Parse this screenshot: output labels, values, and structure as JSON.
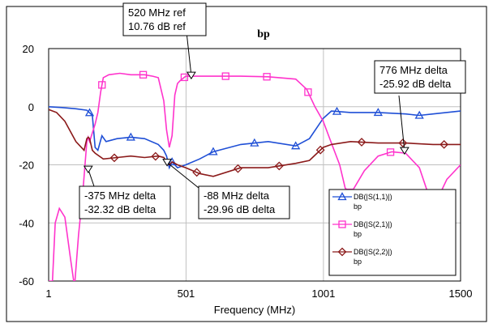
{
  "chart_data": {
    "type": "line",
    "title": "bp",
    "xlabel": "Frequency (MHz)",
    "ylabel": "",
    "xlim": [
      1,
      1500
    ],
    "ylim": [
      -60,
      20
    ],
    "x_ticks": [
      1,
      501,
      1001,
      1500
    ],
    "y_ticks": [
      20,
      0,
      -20,
      -40,
      -60
    ],
    "grid": true,
    "legend_position": "bottom-right",
    "series": [
      {
        "name": "DB(|S(1,1)|)",
        "sub": "bp",
        "color": "#1f4fd6",
        "marker": "triangle",
        "x": [
          1,
          50,
          100,
          140,
          160,
          170,
          180,
          195,
          210,
          250,
          300,
          350,
          400,
          420,
          430,
          440,
          450,
          470,
          500,
          550,
          600,
          700,
          800,
          900,
          950,
          1000,
          1030,
          1100,
          1200,
          1300,
          1350,
          1400,
          1500
        ],
        "y": [
          0,
          -0.3,
          -0.7,
          -1.2,
          -3,
          -14,
          -15,
          -10,
          -12,
          -11,
          -10.5,
          -11,
          -13,
          -15,
          -17,
          -21,
          -19,
          -21,
          -20,
          -18,
          -15.5,
          -13,
          -12,
          -13.5,
          -11,
          -4,
          -1.5,
          -2,
          -2,
          -2.5,
          -3,
          -2.5,
          -1.5
        ]
      },
      {
        "name": "DB(|S(2,1)|)",
        "sub": "bp",
        "color": "#ff33cc",
        "marker": "square",
        "x": [
          1,
          15,
          25,
          40,
          60,
          80,
          95,
          110,
          125,
          135,
          140,
          145,
          150,
          160,
          170,
          180,
          190,
          200,
          220,
          260,
          300,
          350,
          380,
          400,
          410,
          420,
          430,
          440,
          450,
          460,
          470,
          480,
          500,
          600,
          700,
          800,
          900,
          940,
          970,
          1000,
          1020,
          1040,
          1060,
          1080,
          1100,
          1150,
          1200,
          1250,
          1300,
          1350,
          1400,
          1450,
          1500
        ],
        "y": [
          -60,
          -60,
          -40,
          -35,
          -38,
          -52,
          -62,
          -44,
          -30,
          -18,
          -12,
          -10.5,
          -12,
          -9,
          -6,
          -2,
          5,
          10,
          11,
          11.5,
          11,
          11,
          10.5,
          10,
          6,
          2,
          -8,
          -14,
          -10,
          4,
          8,
          9,
          10.5,
          10.5,
          10.5,
          10.3,
          9.5,
          6,
          0,
          -5,
          -10,
          -15,
          -20,
          -28,
          -30,
          -22,
          -17,
          -15.5,
          -16,
          -21,
          -35,
          -25,
          -20
        ]
      },
      {
        "name": "DB(|S(2,2)|)",
        "sub": "bp",
        "color": "#8b1a1a",
        "marker": "diamond",
        "x": [
          1,
          30,
          60,
          100,
          130,
          140,
          145,
          150,
          160,
          170,
          200,
          250,
          300,
          350,
          400,
          420,
          430,
          440,
          450,
          470,
          500,
          550,
          600,
          700,
          800,
          900,
          950,
          1000,
          1030,
          1100,
          1200,
          1300,
          1400,
          1500
        ],
        "y": [
          -1,
          -2,
          -5,
          -12,
          -15,
          -11,
          -10.5,
          -11,
          -15,
          -16,
          -18,
          -17.5,
          -17,
          -17.5,
          -17,
          -17.5,
          -19,
          -20,
          -19,
          -20,
          -21,
          -23,
          -24,
          -21,
          -21,
          -19.5,
          -18.5,
          -14,
          -13,
          -12,
          -12.5,
          -12.5,
          -13,
          -13
        ]
      }
    ],
    "annotations": [
      {
        "lines": [
          "520 MHz ref",
          "10.76 dB ref"
        ],
        "x": 520,
        "y": 10.76
      },
      {
        "lines": [
          "776 MHz delta",
          "-25.92 dB delta"
        ],
        "x": 1296,
        "y": -15.16
      },
      {
        "lines": [
          "-375 MHz delta",
          "-32.32 dB delta"
        ],
        "x": 145,
        "y": -21.56
      },
      {
        "lines": [
          "-88 MHz delta",
          "-29.96 dB delta"
        ],
        "x": 432,
        "y": -19.2
      }
    ]
  }
}
